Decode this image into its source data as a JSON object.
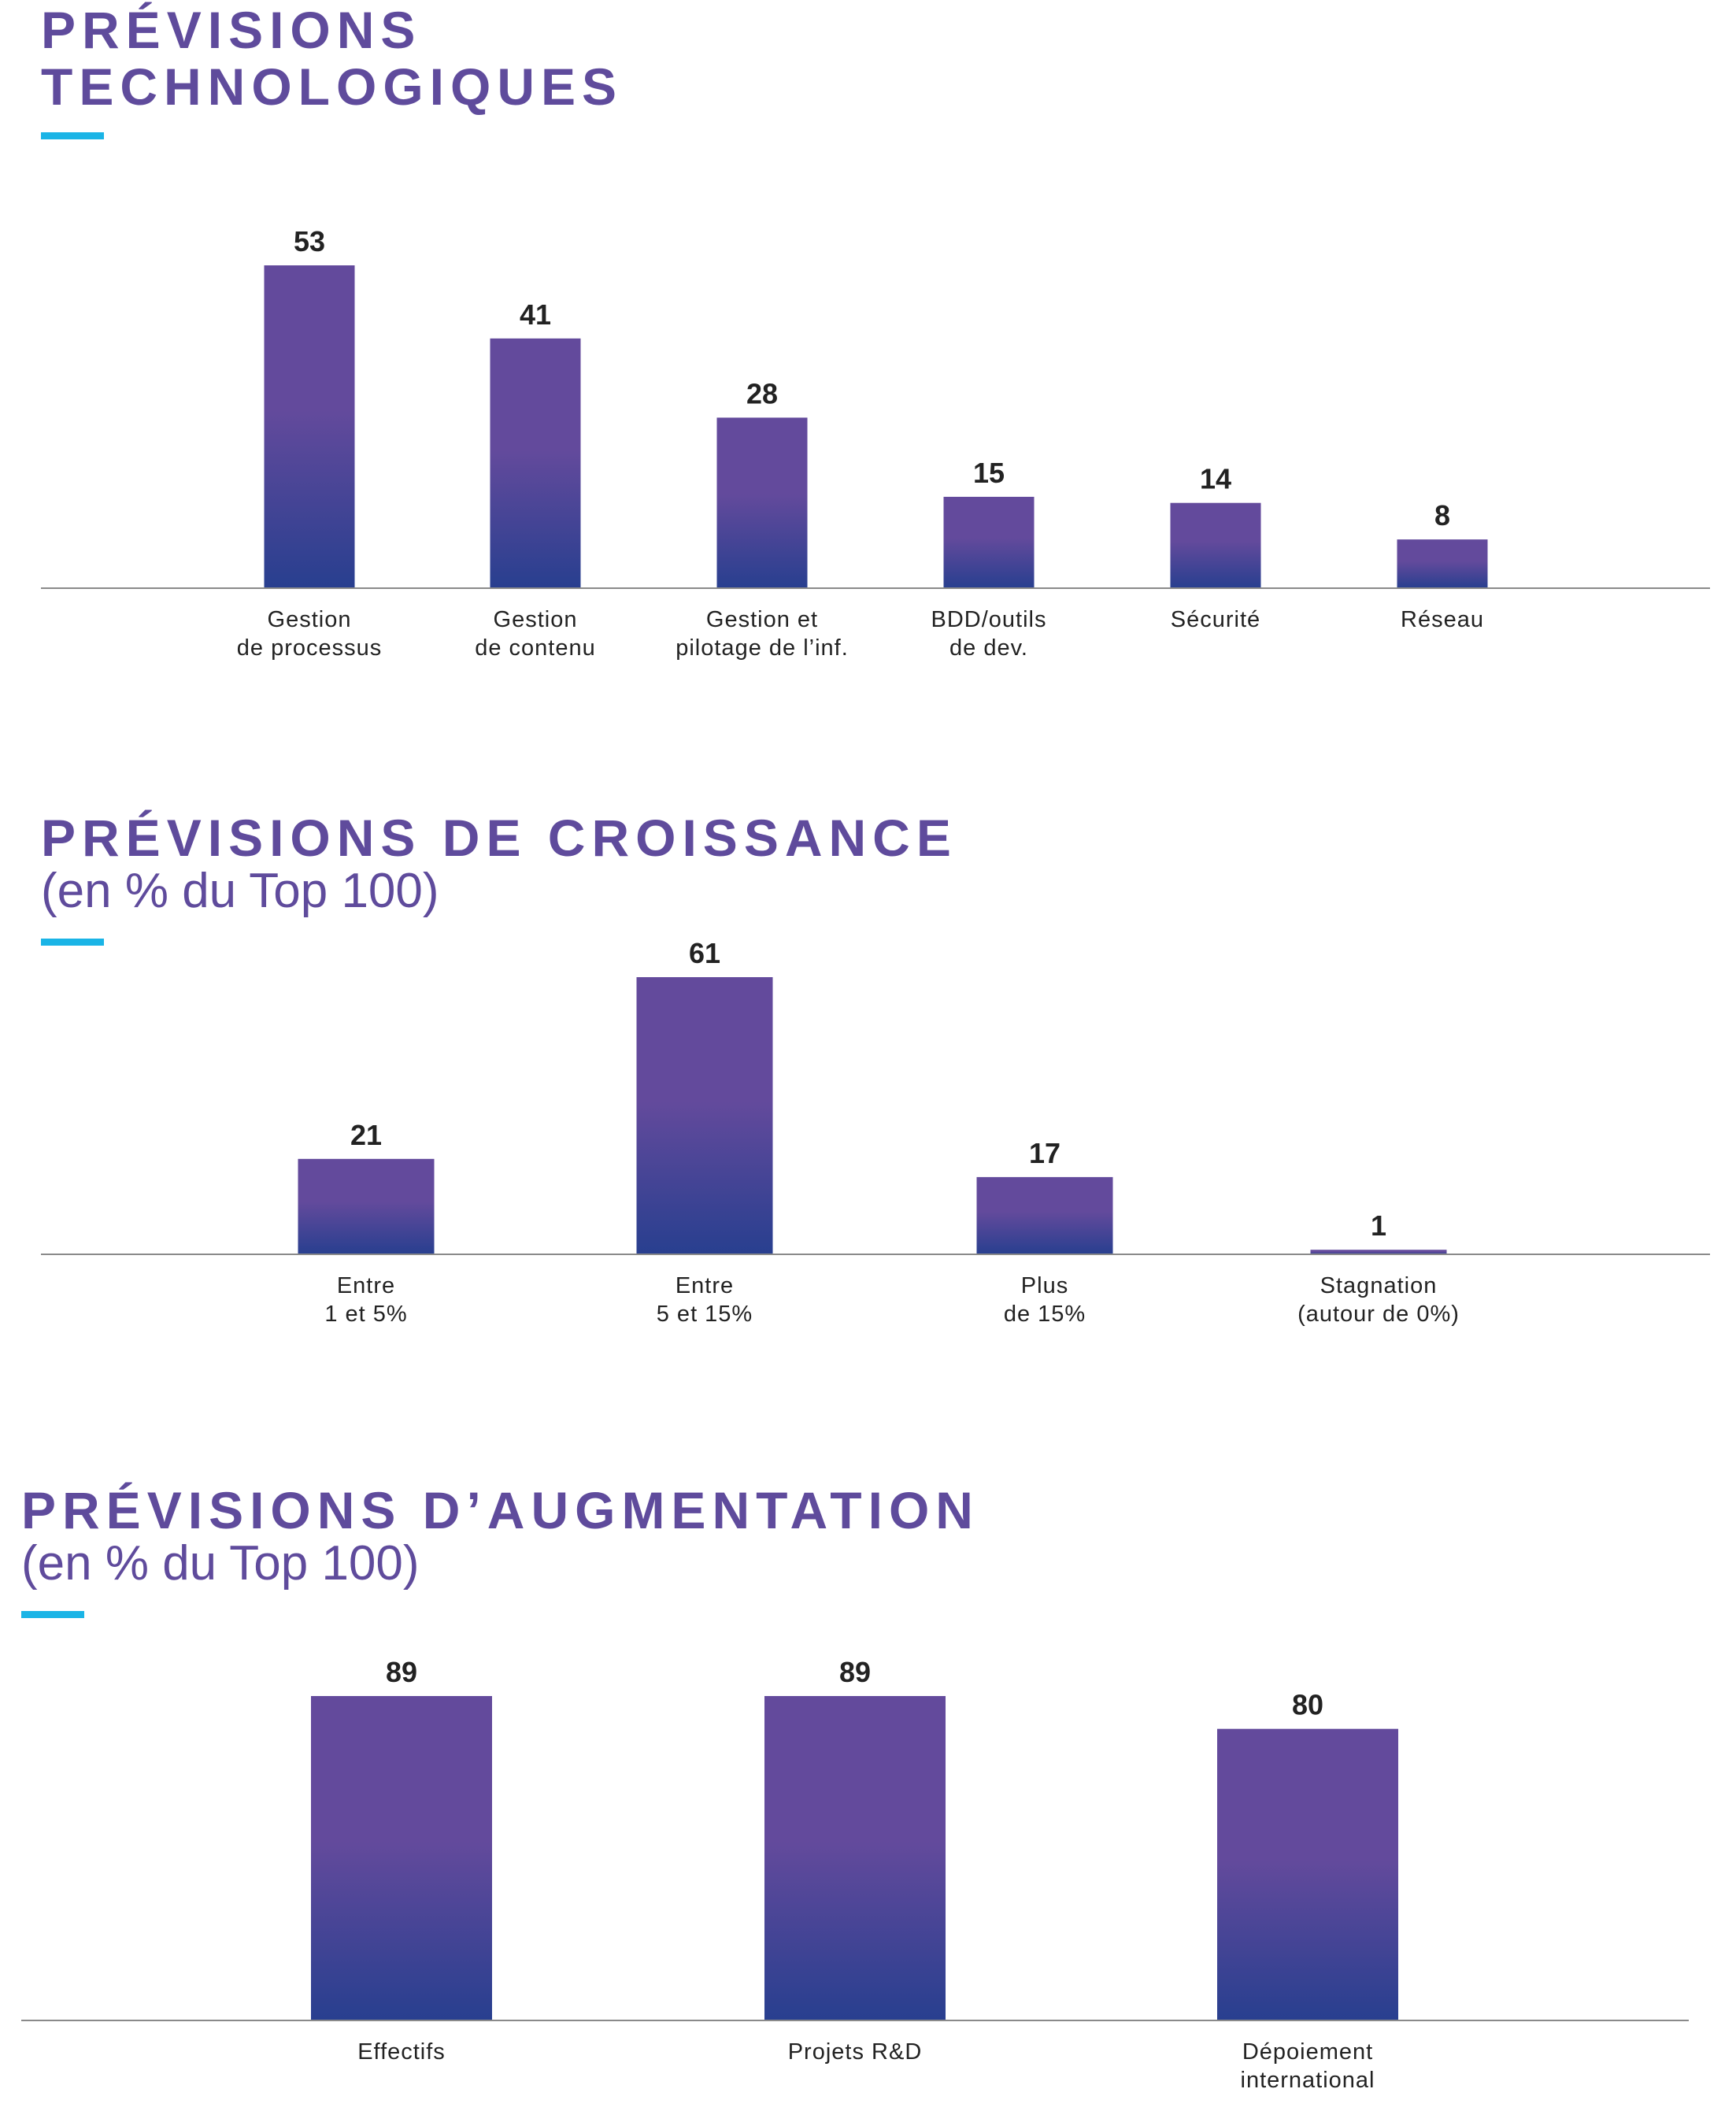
{
  "colors": {
    "title": "#5f4b9c",
    "accent": "#1ab4e6",
    "bar_top": "#634a9c",
    "bar_bottom": "#283f8f",
    "axis": "#8a8a8a",
    "text": "#222222"
  },
  "chart_data": [
    {
      "type": "bar",
      "title_lines": [
        "PRÉVISIONS",
        "TECHNOLOGIQUES"
      ],
      "subtitle": "",
      "categories": [
        [
          "Gestion",
          "de processus"
        ],
        [
          "Gestion",
          "de contenu"
        ],
        [
          "Gestion et",
          "pilotage de l’inf."
        ],
        [
          "BDD/outils",
          "de dev."
        ],
        [
          "Sécurité"
        ],
        [
          "Réseau"
        ]
      ],
      "values": [
        53,
        41,
        28,
        15,
        14,
        8
      ],
      "ylim": [
        0,
        53
      ],
      "grid": false
    },
    {
      "type": "bar",
      "title_lines": [
        "PRÉVISIONS DE CROISSANCE"
      ],
      "subtitle": "(en % du Top 100)",
      "categories": [
        [
          "Entre",
          "1 et 5%"
        ],
        [
          "Entre",
          "5 et 15%"
        ],
        [
          "Plus",
          "de 15%"
        ],
        [
          "Stagnation",
          "(autour de 0%)"
        ]
      ],
      "values": [
        21,
        61,
        17,
        1
      ],
      "ylim": [
        0,
        61
      ],
      "grid": false
    },
    {
      "type": "bar",
      "title_lines": [
        "PRÉVISIONS D’AUGMENTATION"
      ],
      "subtitle": "(en % du Top 100)",
      "categories": [
        [
          "Effectifs"
        ],
        [
          "Projets R&D"
        ],
        [
          "Dépoiement",
          "international"
        ]
      ],
      "values": [
        89,
        89,
        80
      ],
      "ylim": [
        0,
        89
      ],
      "grid": false
    }
  ]
}
